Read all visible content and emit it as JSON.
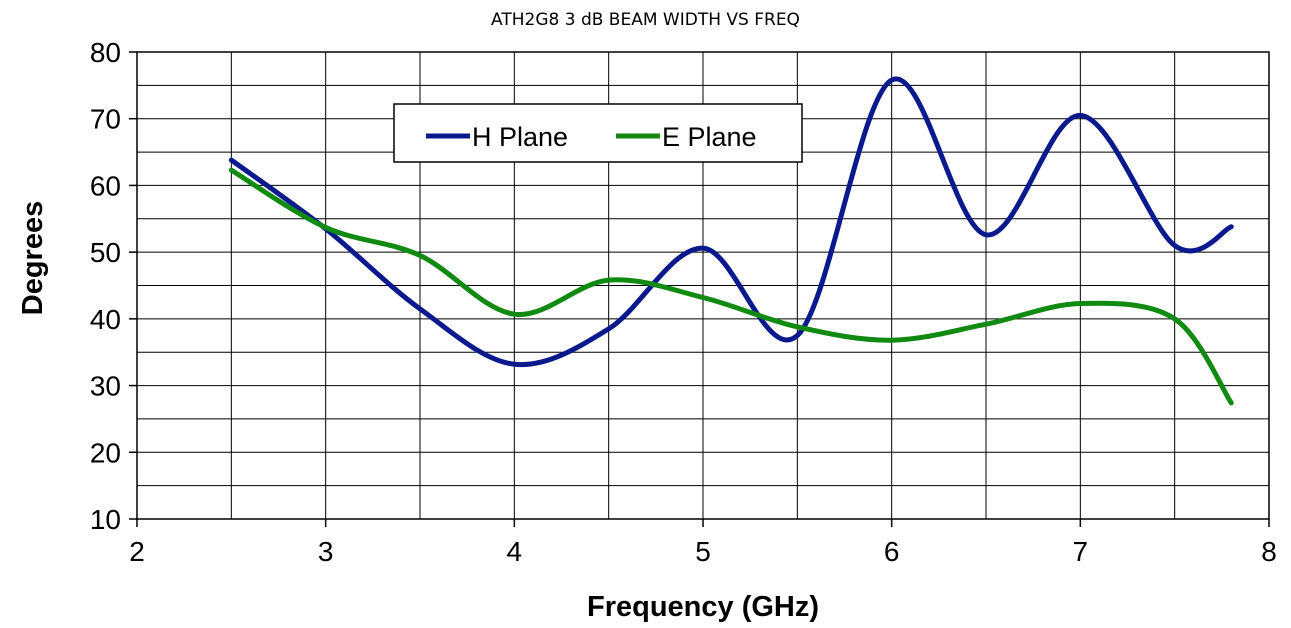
{
  "chart_data": {
    "type": "line",
    "title": "ATH2G8 3 dB BEAM WIDTH VS FREQ",
    "xlabel": "Frequency (GHz)",
    "ylabel": "Degrees",
    "xlim": [
      2,
      8
    ],
    "ylim": [
      10,
      80
    ],
    "x_ticks": [
      2,
      3,
      4,
      5,
      6,
      7,
      8
    ],
    "y_ticks": [
      10,
      20,
      30,
      40,
      50,
      60,
      70,
      80
    ],
    "grid": true,
    "legend_position": "top-center",
    "series": [
      {
        "name": "H Plane",
        "color": "#0A1A8C",
        "x": [
          2.5,
          3.0,
          3.5,
          4.0,
          4.5,
          5.0,
          5.5,
          6.0,
          6.5,
          7.0,
          7.5,
          7.8
        ],
        "y": [
          63.8,
          53.5,
          41.5,
          33.2,
          38.5,
          50.6,
          37.5,
          75.8,
          52.6,
          70.5,
          51.0,
          53.8
        ]
      },
      {
        "name": "E Plane",
        "color": "#108A10",
        "x": [
          2.5,
          3.0,
          3.5,
          4.0,
          4.5,
          5.0,
          5.5,
          6.0,
          6.5,
          7.0,
          7.5,
          7.8
        ],
        "y": [
          62.3,
          53.7,
          49.5,
          40.7,
          45.8,
          43.2,
          38.8,
          36.8,
          39.2,
          42.3,
          40.0,
          27.4
        ]
      }
    ]
  }
}
